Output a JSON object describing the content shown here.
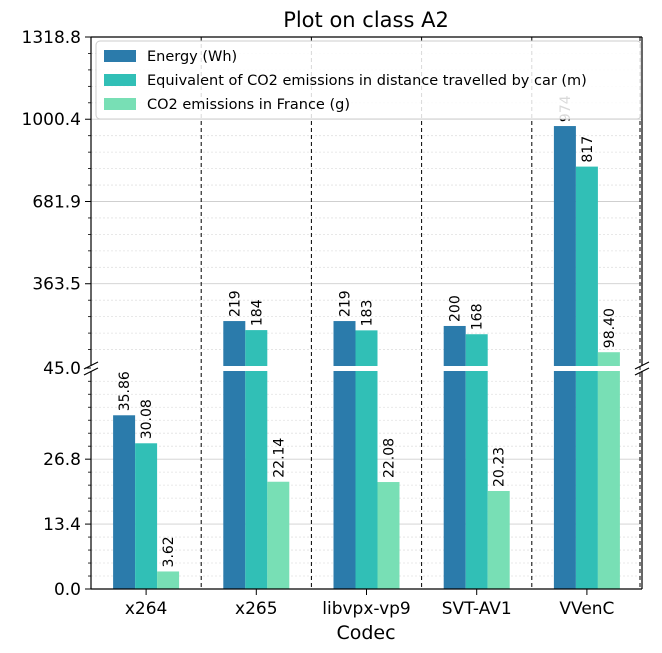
{
  "chart_data": {
    "type": "bar",
    "title": "Plot on class A2",
    "xlabel": "Codec",
    "ylabel": "",
    "categories": [
      "x264",
      "x265",
      "libvpx-vp9",
      "SVT-AV1",
      "VVenC"
    ],
    "series": [
      {
        "name": "Energy (Wh)",
        "color": "#2b7bab",
        "values": [
          35.86,
          219,
          219,
          200,
          974
        ],
        "labels": [
          "35.86",
          "219",
          "219",
          "200",
          "974"
        ]
      },
      {
        "name": "Equivalent of CO2 emissions in distance travelled by car (m)",
        "color": "#31bfb6",
        "values": [
          30.08,
          184,
          183,
          168,
          817
        ],
        "labels": [
          "30.08",
          "184",
          "183",
          "168",
          "817"
        ]
      },
      {
        "name": "CO2 emissions in France (g)",
        "color": "#78dfb5",
        "values": [
          3.62,
          22.14,
          22.08,
          20.23,
          98.4
        ],
        "labels": [
          "3.62",
          "22.14",
          "22.08",
          "20.23",
          "98.40"
        ]
      }
    ],
    "axis_break": true,
    "lower_ylim": [
      0,
      45.0
    ],
    "upper_ylim": [
      45.0,
      1318.8
    ],
    "lower_ticks": [
      "0.0",
      "13.4",
      "26.8",
      "45.0"
    ],
    "upper_ticks": [
      "363.5",
      "681.9",
      "1000.4",
      "1318.8"
    ],
    "grid": true,
    "legend_position": "top"
  }
}
